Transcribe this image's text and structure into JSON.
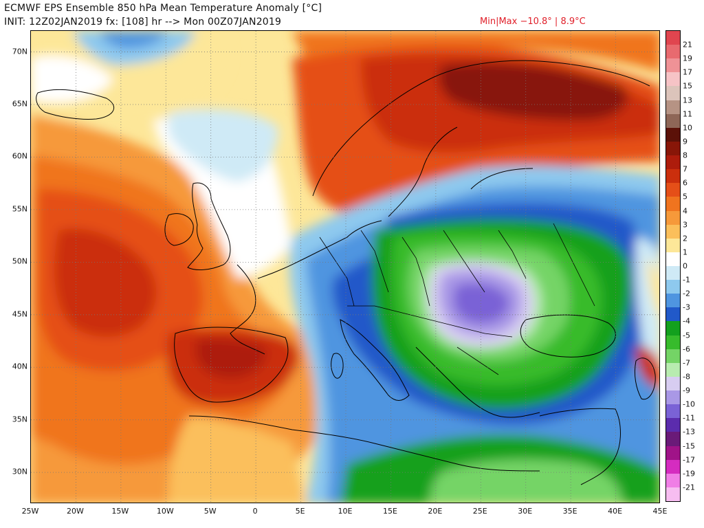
{
  "header": {
    "title": "ECMWF EPS Ensemble 850 hPa Mean Temperature Anomaly [°C]",
    "subtitle": "INIT: 12Z02JAN2019 fx: [108] hr --> Mon 00Z07JAN2019",
    "minmax": "Min|Max −10.8° | 8.9°C"
  },
  "axes": {
    "lat_labels": [
      "70N",
      "65N",
      "60N",
      "55N",
      "50N",
      "45N",
      "40N",
      "35N",
      "30N"
    ],
    "lat_values": [
      70,
      65,
      60,
      55,
      50,
      45,
      40,
      35,
      30
    ],
    "lon_labels": [
      "25W",
      "20W",
      "15W",
      "10W",
      "5W",
      "0",
      "5E",
      "10E",
      "15E",
      "20E",
      "25E",
      "30E",
      "35E",
      "40E",
      "45E"
    ],
    "lon_values": [
      -25,
      -20,
      -15,
      -10,
      -5,
      0,
      5,
      10,
      15,
      20,
      25,
      30,
      35,
      40,
      45
    ],
    "lon_range": [
      -25,
      45
    ],
    "lat_range": [
      27,
      72
    ],
    "grid": "dotted"
  },
  "colorbar": {
    "labels": [
      "21",
      "19",
      "17",
      "15",
      "13",
      "11",
      "10",
      "9",
      "8",
      "7",
      "6",
      "5",
      "4",
      "3",
      "2",
      "1",
      "0",
      "-1",
      "-2",
      "-3",
      "-4",
      "-5",
      "-6",
      "-7",
      "-8",
      "-9",
      "-10",
      "-11",
      "-13",
      "-15",
      "-17",
      "-19",
      "-21"
    ],
    "colors": [
      "#e0454f",
      "#e86a6f",
      "#ef9296",
      "#f6c3c6",
      "#dcc4bb",
      "#b69384",
      "#8e6657",
      "#5b1108",
      "#881608",
      "#ad1c0c",
      "#cb2f0d",
      "#e54f18",
      "#f0741f",
      "#f6993a",
      "#fbbf5b",
      "#fde799",
      "#ffffff",
      "#cfeaf6",
      "#8ec9ee",
      "#4f95e0",
      "#2159c9",
      "#13a01e",
      "#37bb2c",
      "#74d466",
      "#b8ecb0",
      "#d7cdf1",
      "#a998e6",
      "#7a62d6",
      "#5b2cad",
      "#6a1a78",
      "#a01388",
      "#d52cc0",
      "#f07ee6",
      "#f7bdf1"
    ]
  },
  "map_regions": [
    {
      "name": "atlantic-warm-anomaly",
      "color": "#e54f18"
    },
    {
      "name": "iberia-warm-core",
      "color": "#ad1c0c"
    },
    {
      "name": "scandinavia-warm-anomaly",
      "color": "#881608"
    },
    {
      "name": "balkans-cold-core",
      "color": "#a998e6"
    },
    {
      "name": "eastern-europe-cold",
      "color": "#37bb2c"
    },
    {
      "name": "mediterranean-cold",
      "color": "#4f95e0"
    },
    {
      "name": "north-sea-neutral",
      "color": "#cfeaf6"
    }
  ]
}
